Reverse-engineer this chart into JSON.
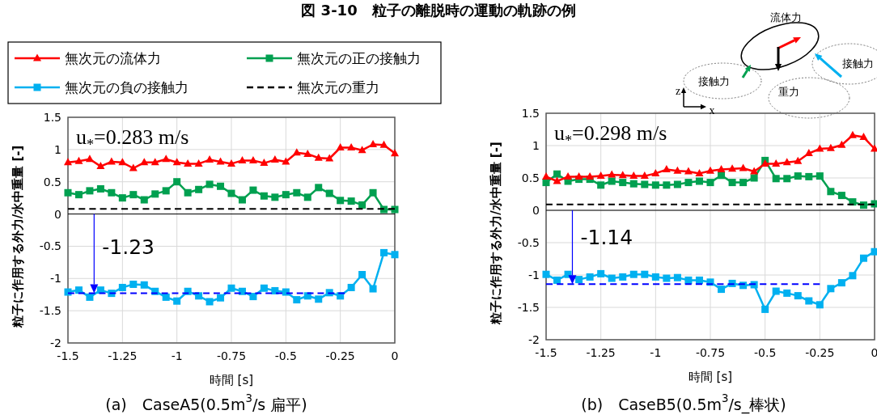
{
  "chart_data": [
    {
      "type": "line",
      "title": "図 3-10　粒子の離脱時の運動の軌跡の例",
      "subtitle": "(a)　CaseA5(0.5m$^{3}$/s 扁平)",
      "xlabel": "時間 [s]",
      "ylabel": "粒子に作用する外力/水中重量 [-]",
      "xlim": [
        -1.5,
        0
      ],
      "ylim": [
        -2,
        1.5
      ],
      "xticks": [
        -1.5,
        -1.25,
        -1,
        -0.75,
        -0.5,
        -0.25,
        0
      ],
      "yticks": [
        -2,
        -1.5,
        -1,
        -0.5,
        0,
        0.5,
        1,
        1.5
      ],
      "grid": true,
      "legend": "top left",
      "x": [
        -1.5,
        -1.45,
        -1.4,
        -1.35,
        -1.3,
        -1.25,
        -1.2,
        -1.15,
        -1.1,
        -1.05,
        -1,
        -0.95,
        -0.9,
        -0.85,
        -0.8,
        -0.75,
        -0.7,
        -0.65,
        -0.6,
        -0.55,
        -0.5,
        -0.45,
        -0.4,
        -0.35,
        -0.3,
        -0.25,
        -0.2,
        -0.15,
        -0.1,
        -0.05,
        0
      ],
      "annotations": [
        "u$_{*}$=0.283 m/s",
        {
          "text": "-1.23",
          "x": -1.38,
          "y": -1.23
        }
      ],
      "series": [
        {
          "name": "無次元の流体力",
          "color": "#ff0000",
          "marker": "triangle",
          "values": [
            0.8,
            0.82,
            0.85,
            0.74,
            0.81,
            0.8,
            0.71,
            0.8,
            0.8,
            0.85,
            0.8,
            0.78,
            0.78,
            0.84,
            0.81,
            0.78,
            0.83,
            0.83,
            0.79,
            0.84,
            0.81,
            0.95,
            0.93,
            0.87,
            0.86,
            1.03,
            1.03,
            0.99,
            1.08,
            1.07,
            0.94
          ]
        },
        {
          "name": "無次元の正の接触力",
          "color": "#00a050",
          "marker": "square",
          "values": [
            0.33,
            0.3,
            0.36,
            0.39,
            0.33,
            0.25,
            0.3,
            0.22,
            0.31,
            0.36,
            0.5,
            0.33,
            0.38,
            0.46,
            0.43,
            0.32,
            0.22,
            0.37,
            0.28,
            0.26,
            0.3,
            0.33,
            0.26,
            0.41,
            0.32,
            0.21,
            0.2,
            0.14,
            0.33,
            0.07,
            0.07
          ]
        },
        {
          "name": "無次元の負の接触力",
          "color": "#00b0f0",
          "marker": "square",
          "values": [
            -1.21,
            -1.18,
            -1.29,
            -1.18,
            -1.23,
            -1.14,
            -1.09,
            -1.1,
            -1.2,
            -1.29,
            -1.35,
            -1.2,
            -1.27,
            -1.36,
            -1.3,
            -1.15,
            -1.2,
            -1.28,
            -1.15,
            -1.19,
            -1.21,
            -1.33,
            -1.27,
            -1.32,
            -1.22,
            -1.27,
            -1.14,
            -0.94,
            -1.16,
            -0.6,
            -0.63
          ]
        },
        {
          "name": "無次元の重力",
          "color": "#000000",
          "marker": "none",
          "line_style": "dashed",
          "x": [
            -1.5,
            0
          ],
          "values": [
            0.08,
            0.08
          ]
        },
        {
          "color": "#0000ff",
          "marker": "none",
          "line_style": "dashed",
          "x": [
            -1.5,
            -0.23
          ],
          "values": [
            -1.23,
            -1.23
          ]
        }
      ]
    },
    {
      "type": "line",
      "subtitle": "(b)　CaseB5(0.5m$^{3}$/s_棒状)",
      "xlabel": "時間 [s]",
      "ylabel": "粒子に作用する外力/水中重量 [-]",
      "xlim": [
        -1.5,
        0
      ],
      "ylim": [
        -2,
        1.5
      ],
      "xticks": [
        -1.5,
        -1.25,
        -1,
        -0.75,
        -0.5,
        -0.25,
        0
      ],
      "yticks": [
        -2,
        -1.5,
        -1,
        -0.5,
        0,
        0.5,
        1,
        1.5
      ],
      "grid": true,
      "x": [
        -1.5,
        -1.45,
        -1.4,
        -1.35,
        -1.3,
        -1.25,
        -1.2,
        -1.15,
        -1.1,
        -1.05,
        -1,
        -0.95,
        -0.9,
        -0.85,
        -0.8,
        -0.75,
        -0.7,
        -0.65,
        -0.6,
        -0.55,
        -0.5,
        -0.45,
        -0.4,
        -0.35,
        -0.3,
        -0.25,
        -0.2,
        -0.15,
        -0.1,
        -0.05,
        0
      ],
      "annotations": [
        "u$_{*}$=0.298 m/s",
        {
          "text": "-1.14",
          "x": -1.38,
          "y": -1.14
        },
        "流体力",
        "接触力",
        "重力",
        "接触力",
        "z",
        "x"
      ],
      "series": [
        {
          "color": "#ff0000",
          "marker": "triangle",
          "values": [
            0.52,
            0.45,
            0.52,
            0.52,
            0.52,
            0.53,
            0.55,
            0.54,
            0.53,
            0.53,
            0.57,
            0.63,
            0.61,
            0.6,
            0.57,
            0.61,
            0.63,
            0.64,
            0.65,
            0.6,
            0.72,
            0.72,
            0.74,
            0.76,
            0.88,
            0.95,
            0.96,
            1.01,
            1.16,
            1.13,
            0.95
          ]
        },
        {
          "color": "#00a050",
          "marker": "square",
          "values": [
            0.43,
            0.56,
            0.45,
            0.48,
            0.48,
            0.39,
            0.45,
            0.43,
            0.41,
            0.4,
            0.39,
            0.39,
            0.4,
            0.43,
            0.45,
            0.43,
            0.54,
            0.43,
            0.43,
            0.5,
            0.77,
            0.49,
            0.49,
            0.53,
            0.52,
            0.53,
            0.29,
            0.23,
            0.13,
            0.08,
            0.1
          ]
        },
        {
          "color": "#00b0f0",
          "marker": "square",
          "values": [
            -0.99,
            -1.08,
            -0.99,
            -1.07,
            -1.03,
            -0.98,
            -1.05,
            -1.03,
            -0.99,
            -0.99,
            -1.03,
            -1.05,
            -1.04,
            -1.08,
            -1.08,
            -1.11,
            -1.22,
            -1.13,
            -1.16,
            -1.15,
            -1.53,
            -1.25,
            -1.28,
            -1.32,
            -1.4,
            -1.46,
            -1.21,
            -1.12,
            -1.01,
            -0.74,
            -0.64
          ]
        },
        {
          "color": "#000000",
          "marker": "none",
          "line_style": "dashed",
          "x": [
            -1.5,
            0
          ],
          "values": [
            0.09,
            0.09
          ]
        },
        {
          "color": "#0000ff",
          "marker": "none",
          "line_style": "dashed",
          "x": [
            -1.5,
            -0.25
          ],
          "values": [
            -1.14,
            -1.14
          ]
        }
      ]
    }
  ]
}
